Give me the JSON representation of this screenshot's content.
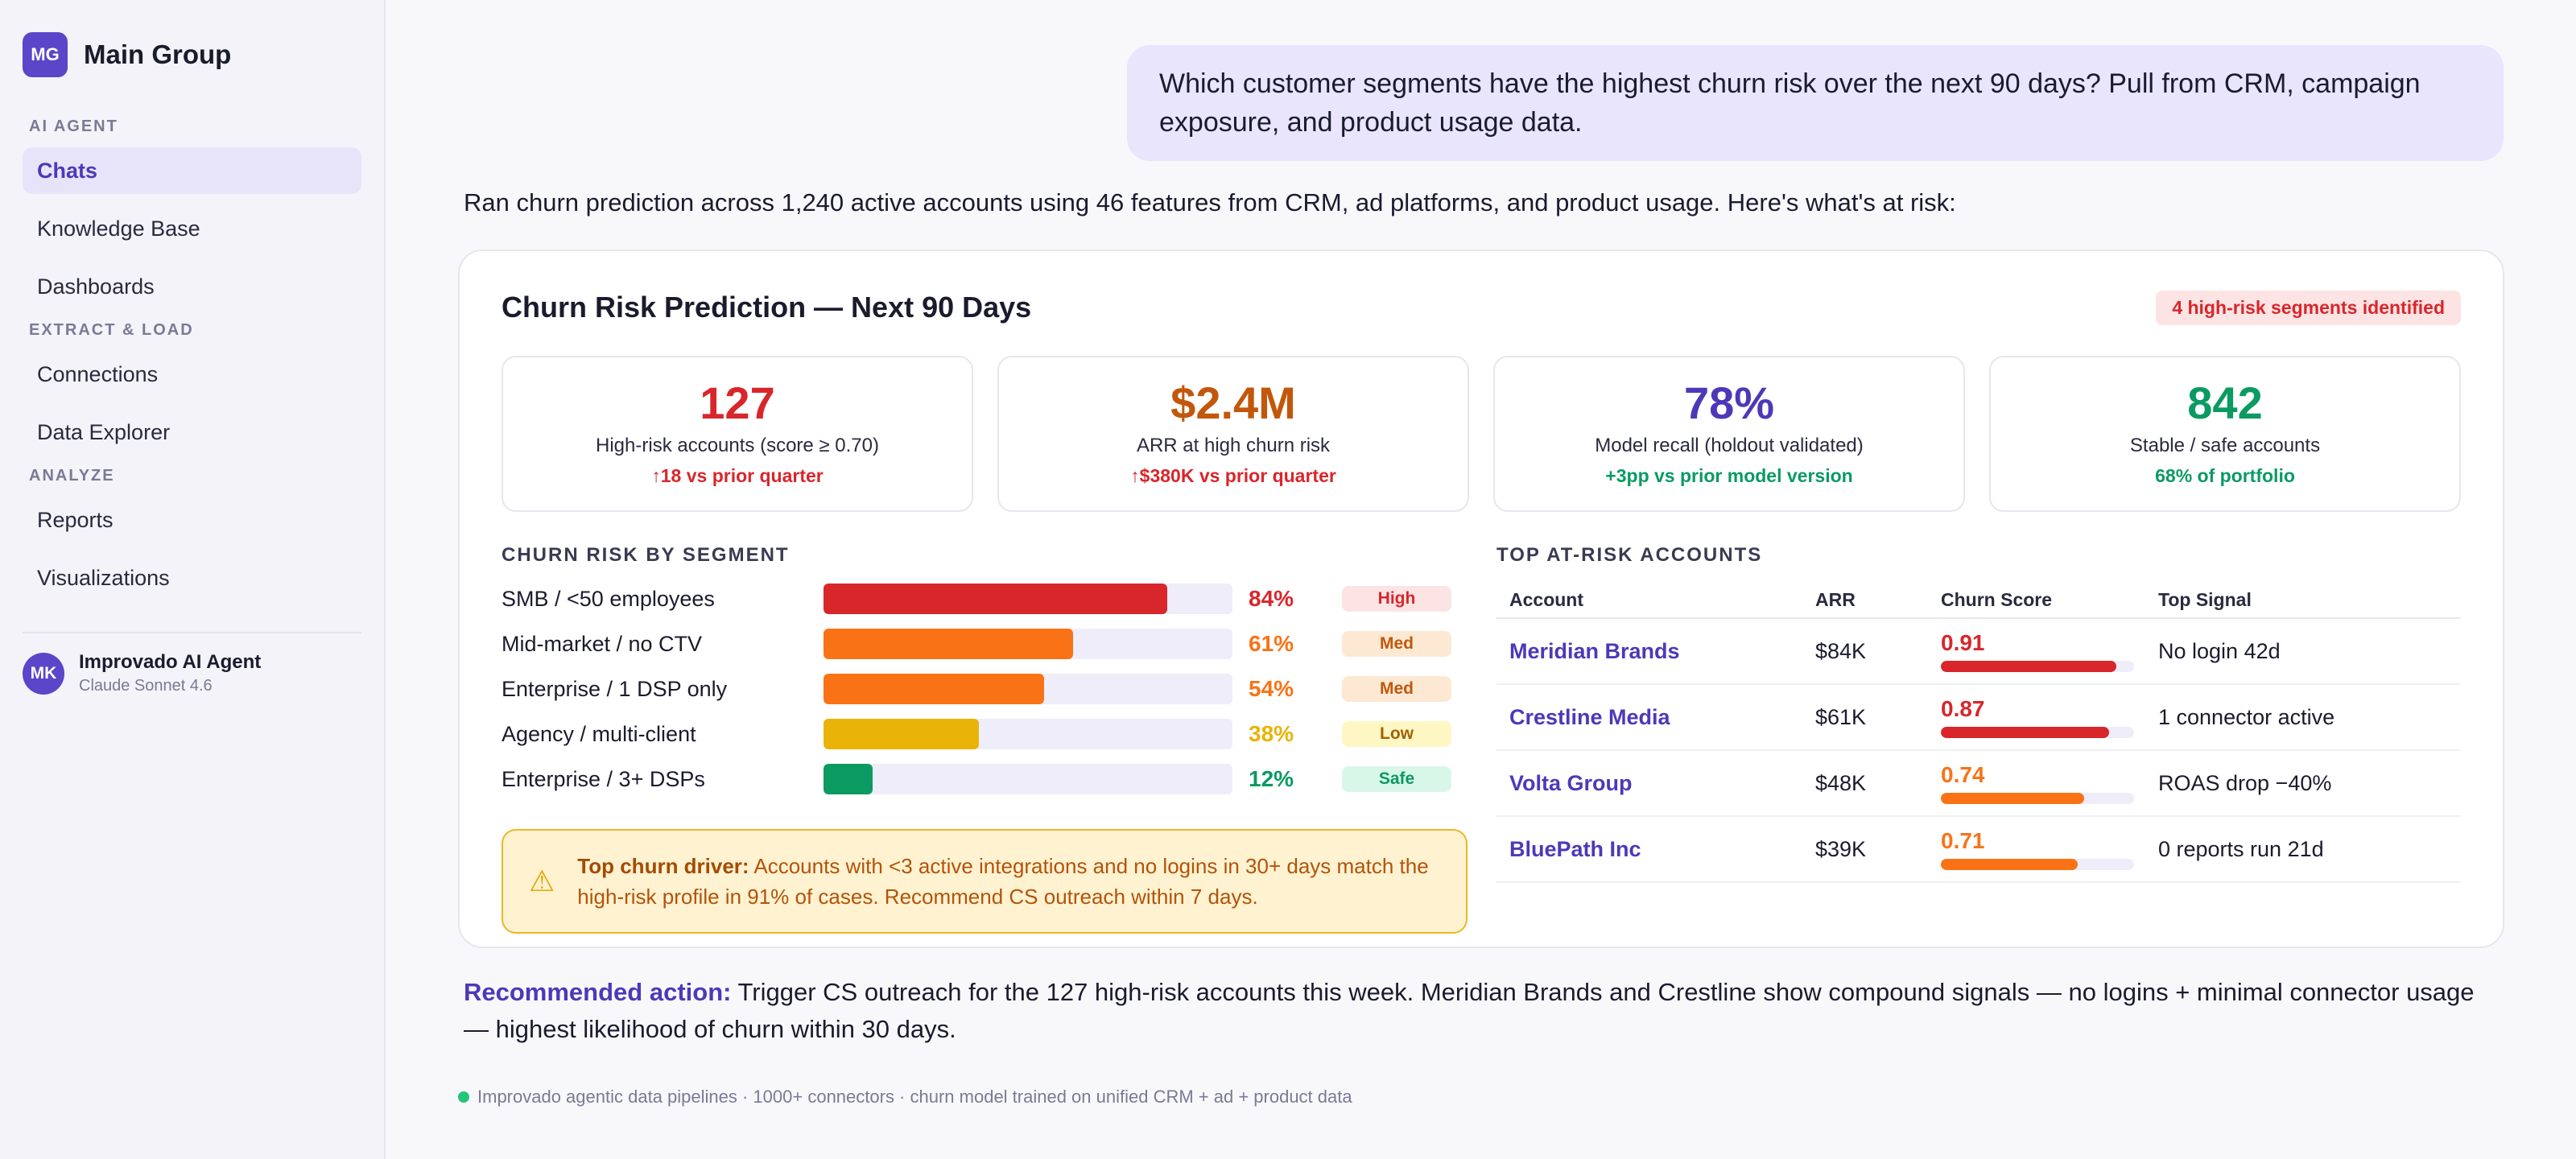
{
  "app": {
    "logo": "MG",
    "name": "Main Group"
  },
  "sidebar": {
    "sections": [
      {
        "title": "AI AGENT",
        "items": [
          {
            "label": "Chats",
            "active": true
          },
          {
            "label": "Knowledge Base"
          },
          {
            "label": "Dashboards"
          }
        ]
      },
      {
        "title": "EXTRACT & LOAD",
        "items": [
          {
            "label": "Connections"
          },
          {
            "label": "Data Explorer"
          }
        ]
      },
      {
        "title": "ANALYZE",
        "items": [
          {
            "label": "Reports"
          },
          {
            "label": "Visualizations"
          }
        ]
      }
    ],
    "agent": {
      "initials": "MK",
      "name": "Improvado AI Agent",
      "model": "Claude Sonnet 4.6"
    }
  },
  "chat": {
    "user_message": "Which customer segments have the highest churn risk over the next 90 days? Pull from CRM, campaign exposure, and product usage data.",
    "intro": "Ran churn prediction across 1,240 active accounts using 46 features from CRM, ad platforms, and product usage. Here's what's at risk:",
    "card": {
      "title": "Churn Risk Prediction — Next 90 Days",
      "badge": "4 high-risk segments identified",
      "kpis": [
        {
          "value": "127",
          "label": "High-risk accounts (score ≥ 0.70)",
          "delta": "↑18 vs prior quarter",
          "value_color": "#d8262b",
          "delta_color": "#d8262b"
        },
        {
          "value": "$2.4M",
          "label": "ARR at high churn risk",
          "delta": "↑$380K vs prior quarter",
          "value_color": "#c2570c",
          "delta_color": "#d8262b"
        },
        {
          "value": "78%",
          "label": "Model recall (holdout validated)",
          "delta": "+3pp vs prior model version",
          "value_color": "#4e38b8",
          "delta_color": "#0a9a62"
        },
        {
          "value": "842",
          "label": "Stable / safe accounts",
          "delta": "68% of portfolio",
          "value_color": "#0a9a62",
          "delta_color": "#0a9a62"
        }
      ],
      "segments_title": "CHURN RISK BY SEGMENT",
      "segments": [
        {
          "label": "SMB / <50 employees",
          "value": 84,
          "pct": "84%",
          "risk": "High",
          "color": "#d8262b",
          "pill_bg": "#fde4e4",
          "pill_color": "#d8262b"
        },
        {
          "label": "Mid-market / no CTV",
          "value": 61,
          "pct": "61%",
          "risk": "Med",
          "color": "#f97316",
          "pill_bg": "#fde9d3",
          "pill_color": "#c2570c"
        },
        {
          "label": "Enterprise / 1 DSP only",
          "value": 54,
          "pct": "54%",
          "risk": "Med",
          "color": "#f97316",
          "pill_bg": "#fde9d3",
          "pill_color": "#c2570c"
        },
        {
          "label": "Agency / multi-client",
          "value": 38,
          "pct": "38%",
          "risk": "Low",
          "color": "#eab308",
          "pill_bg": "#fef7c3",
          "pill_color": "#a16207"
        },
        {
          "label": "Enterprise / 3+ DSPs",
          "value": 12,
          "pct": "12%",
          "risk": "Safe",
          "color": "#0a9a62",
          "pill_bg": "#d9f7e8",
          "pill_color": "#0a9a62"
        }
      ],
      "alert": {
        "lead": "Top churn driver:",
        "text": " Accounts with <3 active integrations and no logins in 30+ days match the high-risk profile in 91% of cases. Recommend CS outreach within 7 days."
      },
      "accounts_title": "TOP AT-RISK ACCOUNTS",
      "accounts_headers": [
        "Account",
        "ARR",
        "Churn Score",
        "Top Signal"
      ],
      "accounts": [
        {
          "name": "Meridian Brands",
          "arr": "$84K",
          "score": "0.91",
          "score_value": 0.91,
          "color": "#d8262b",
          "signal": "No login 42d"
        },
        {
          "name": "Crestline Media",
          "arr": "$61K",
          "score": "0.87",
          "score_value": 0.87,
          "color": "#d8262b",
          "signal": "1 connector active"
        },
        {
          "name": "Volta Group",
          "arr": "$48K",
          "score": "0.74",
          "score_value": 0.74,
          "color": "#f97316",
          "signal": "ROAS drop −40%"
        },
        {
          "name": "BluePath Inc",
          "arr": "$39K",
          "score": "0.71",
          "score_value": 0.71,
          "color": "#f97316",
          "signal": "0 reports run 21d"
        }
      ]
    },
    "recommendation": {
      "lead": "Recommended action:",
      "text": " Trigger CS outreach for the 127 high-risk accounts this week. Meridian Brands and Crestline show compound signals — no logins + minimal connector usage — highest likelihood of churn within 30 days."
    },
    "footer": "Improvado agentic data pipelines · 1000+ connectors · churn model trained on unified CRM + ad + product data"
  }
}
